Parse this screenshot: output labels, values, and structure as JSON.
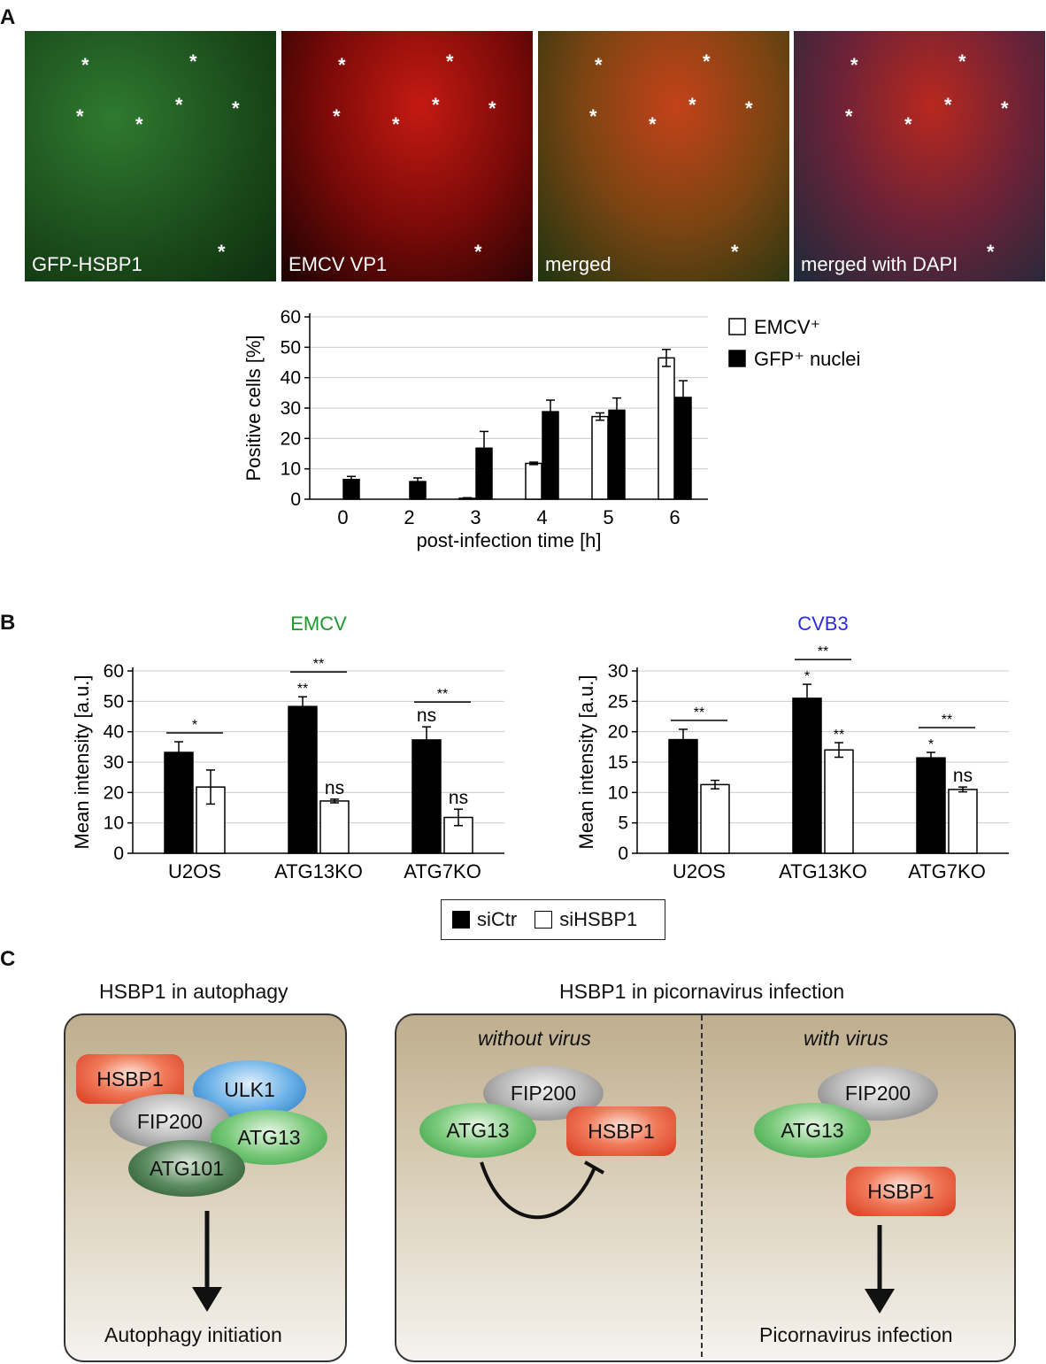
{
  "panels": {
    "a": "A",
    "b": "B",
    "c": "C"
  },
  "micrographs": [
    {
      "label": "GFP-HSBP1",
      "bg": "#1c4f1c"
    },
    {
      "label": "EMCV VP1",
      "bg": "#3a0808"
    },
    {
      "label": "merged",
      "bg": "#4a3210"
    },
    {
      "label": "merged with DAPI",
      "bg": "#3a1c2c"
    }
  ],
  "asterisk": "*",
  "chart_data": [
    {
      "type": "bar",
      "categories": [
        "0",
        "2",
        "3",
        "4",
        "5",
        "6"
      ],
      "series": [
        {
          "name": "EMCV⁺",
          "values": [
            0,
            0,
            0.3,
            11.8,
            27.2,
            46.5
          ],
          "errors": [
            0,
            0,
            0.2,
            0.4,
            1.2,
            2.8
          ],
          "color": "#ffffff"
        },
        {
          "name": "GFP⁺ nuclei",
          "values": [
            6.5,
            5.8,
            16.8,
            28.8,
            29.3,
            33.5
          ],
          "errors": [
            1.0,
            1.2,
            5.5,
            3.8,
            4.0,
            5.5
          ],
          "color": "#000000"
        }
      ],
      "xlabel": "post-infection time [h]",
      "ylabel": "Positive cells [%]",
      "ylim": [
        0,
        60
      ],
      "yticks": [
        "0",
        "10",
        "20",
        "30",
        "40",
        "50",
        "60"
      ],
      "legend_position": "right",
      "grid": true
    },
    {
      "type": "bar",
      "title": "EMCV",
      "title_color": "#1a9a2a",
      "categories": [
        "U2OS",
        "ATG13KO",
        "ATG7KO"
      ],
      "series": [
        {
          "name": "siCtr",
          "values": [
            33.2,
            48.3,
            37.3
          ],
          "errors": [
            3.5,
            3.2,
            4.3
          ],
          "color": "#000000",
          "labels": [
            "",
            "**",
            "ns"
          ]
        },
        {
          "name": "siHSBP1",
          "values": [
            21.8,
            17.2,
            11.8
          ],
          "errors": [
            5.6,
            0.6,
            2.7
          ],
          "color": "#ffffff",
          "labels": [
            "",
            "ns",
            "ns"
          ]
        }
      ],
      "brackets": [
        "*",
        "**",
        "**"
      ],
      "ylabel": "Mean intensity [a.u.]",
      "ylim": [
        0,
        60
      ],
      "yticks": [
        "0",
        "10",
        "20",
        "30",
        "40",
        "50",
        "60"
      ],
      "grid": true
    },
    {
      "type": "bar",
      "title": "CVB3",
      "title_color": "#2a2ae6",
      "categories": [
        "U2OS",
        "ATG13KO",
        "ATG7KO"
      ],
      "series": [
        {
          "name": "siCtr",
          "values": [
            18.7,
            25.5,
            15.7
          ],
          "errors": [
            1.7,
            2.3,
            0.9
          ],
          "color": "#000000",
          "labels": [
            "",
            "*",
            "*"
          ]
        },
        {
          "name": "siHSBP1",
          "values": [
            11.3,
            17.0,
            10.5
          ],
          "errors": [
            0.7,
            1.2,
            0.4
          ],
          "color": "#ffffff",
          "labels": [
            "",
            "**",
            "ns"
          ]
        }
      ],
      "brackets": [
        "**",
        "**",
        "**"
      ],
      "ylabel": "Mean intensity [a.u.]",
      "ylim": [
        0,
        30
      ],
      "yticks": [
        "0",
        "5",
        "10",
        "15",
        "20",
        "25",
        "30"
      ],
      "grid": true
    }
  ],
  "legend_b": {
    "a": "siCtr",
    "b": "siHSBP1"
  },
  "panel_c": {
    "left_title": "HSBP1 in autophagy",
    "right_title": "HSBP1 in picornavirus infection",
    "without_virus": "without virus",
    "with_virus": "with virus",
    "hsbp1": "HSBP1",
    "ulk1": "ULK1",
    "fip200": "FIP200",
    "atg13": "ATG13",
    "atg101": "ATG101",
    "autophagy_initiation": "Autophagy initiation",
    "picornavirus_infection": "Picornavirus infection"
  }
}
